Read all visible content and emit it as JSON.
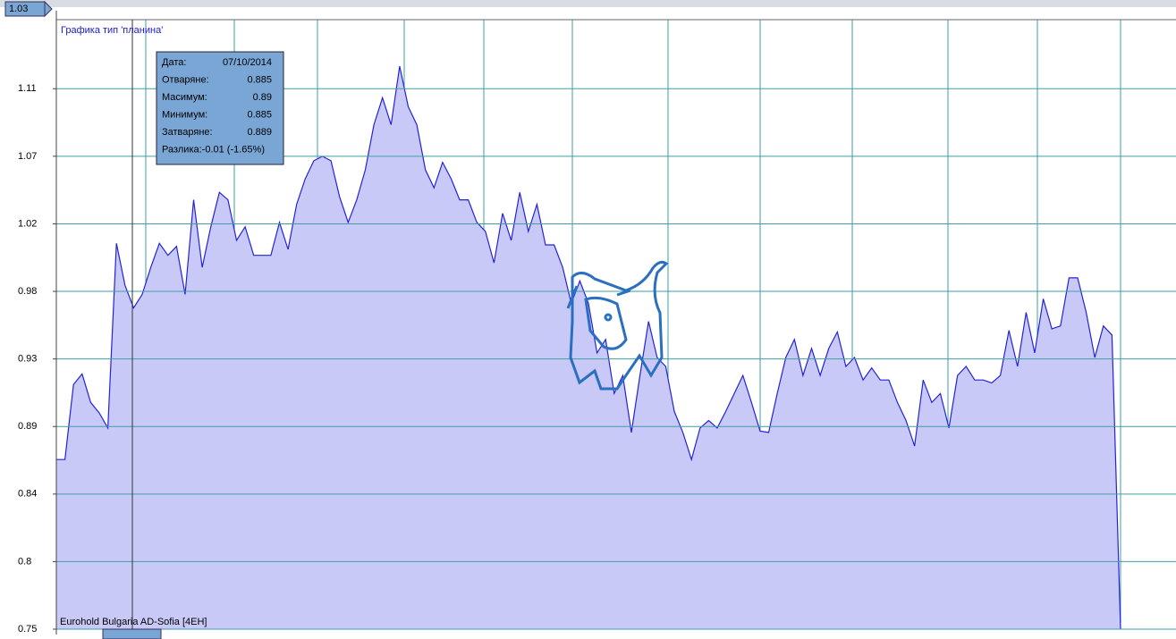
{
  "chart_data": {
    "type": "area",
    "title": "Графика тип 'планина'",
    "current_value": 1.03,
    "series": [
      {
        "name": "Eurohold Bulgaria AD-Sofia [4EH]",
        "color": "#2323d8",
        "fill": "#c9c9f7",
        "values": [
          0.863,
          0.863,
          0.913,
          0.92,
          0.901,
          0.894,
          0.884,
          1.007,
          0.979,
          0.964,
          0.973,
          0.991,
          1.007,
          0.999,
          1.005,
          0.973,
          1.036,
          0.991,
          1.018,
          1.041,
          1.036,
          1.009,
          1.018,
          0.999,
          0.999,
          0.999,
          1.021,
          1.003,
          1.033,
          1.05,
          1.062,
          1.065,
          1.062,
          1.038,
          1.021,
          1.036,
          1.056,
          1.086,
          1.104,
          1.086,
          1.125,
          1.098,
          1.086,
          1.056,
          1.044,
          1.061,
          1.05,
          1.036,
          1.036,
          1.021,
          1.015,
          0.994,
          1.027,
          1.009,
          1.041,
          1.015,
          1.033,
          1.006,
          1.006,
          0.991,
          0.967,
          0.982,
          0.967,
          0.934,
          0.943,
          0.907,
          0.919,
          0.881,
          0.919,
          0.955,
          0.931,
          0.925,
          0.895,
          0.881,
          0.863,
          0.884,
          0.889,
          0.884,
          0.895,
          0.907,
          0.919,
          0.901,
          0.882,
          0.881,
          0.907,
          0.931,
          0.943,
          0.919,
          0.937,
          0.919,
          0.937,
          0.948,
          0.925,
          0.931,
          0.916,
          0.924,
          0.916,
          0.916,
          0.901,
          0.889,
          0.872,
          0.916,
          0.901,
          0.907,
          0.884,
          0.919,
          0.925,
          0.916,
          0.916,
          0.914,
          0.919,
          0.949,
          0.925,
          0.961,
          0.934,
          0.97,
          0.95,
          0.952,
          0.984,
          0.984,
          0.961,
          0.931,
          0.952,
          0.946,
          0.75
        ]
      }
    ],
    "ylim": [
      0.75,
      1.156
    ],
    "yticks": [
      {
        "value": 0.75,
        "label": "0.75"
      },
      {
        "value": 0.795,
        "label": "0.8"
      },
      {
        "value": 0.84,
        "label": "0.84"
      },
      {
        "value": 0.885,
        "label": "0.89"
      },
      {
        "value": 0.93,
        "label": "0.93"
      },
      {
        "value": 0.975,
        "label": "0.98"
      },
      {
        "value": 1.02,
        "label": "1.02"
      },
      {
        "value": 1.065,
        "label": "1.07"
      },
      {
        "value": 1.11,
        "label": "1.11"
      }
    ],
    "grid": true
  },
  "tooltip": {
    "rows": [
      [
        "Дата:",
        "07/10/2014"
      ],
      [
        "Отваряне:",
        "0.885"
      ],
      [
        "Масимум:",
        "0.89"
      ],
      [
        "Минимум:",
        "0.885"
      ],
      [
        "Затваряне:",
        "0.889"
      ]
    ],
    "footer": "Разлика:-0.01 (-1.65%)"
  }
}
